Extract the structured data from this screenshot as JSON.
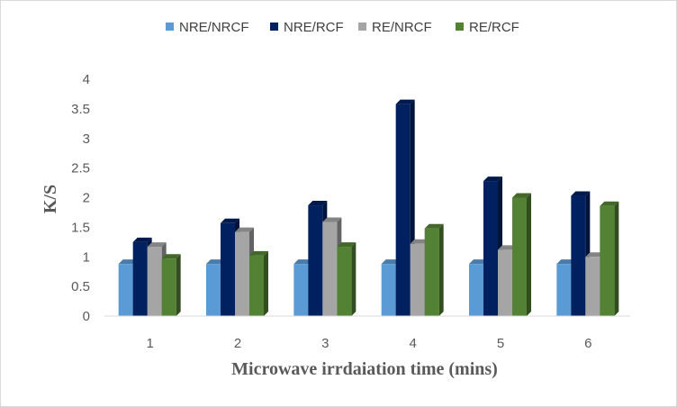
{
  "chart_data": {
    "type": "bar",
    "style": "3d-clustered-column",
    "categories": [
      "1",
      "2",
      "3",
      "4",
      "5",
      "6"
    ],
    "series": [
      {
        "name": "NRE/NRCF",
        "color": "#5b9bd5",
        "values": [
          0.88,
          0.88,
          0.88,
          0.88,
          0.88,
          0.88
        ]
      },
      {
        "name": "NRE/RCF",
        "color": "#002060",
        "values": [
          1.25,
          1.57,
          1.87,
          3.58,
          2.28,
          2.03
        ]
      },
      {
        "name": "RE/NRCF",
        "color": "#a5a5a5",
        "values": [
          1.17,
          1.42,
          1.59,
          1.22,
          1.12,
          1.0
        ]
      },
      {
        "name": "RE/RCF",
        "color": "#548235",
        "values": [
          0.97,
          1.02,
          1.17,
          1.48,
          2.0,
          1.86
        ]
      }
    ],
    "title": "",
    "xlabel": "Microwave irrdaiation  time (mins)",
    "ylabel": "K/S",
    "ylim": [
      0,
      4
    ],
    "yticks": [
      "0",
      "0.5",
      "1",
      "1.5",
      "2",
      "2.5",
      "3",
      "3.5",
      "4"
    ],
    "grid": false,
    "legend_position": "top"
  }
}
